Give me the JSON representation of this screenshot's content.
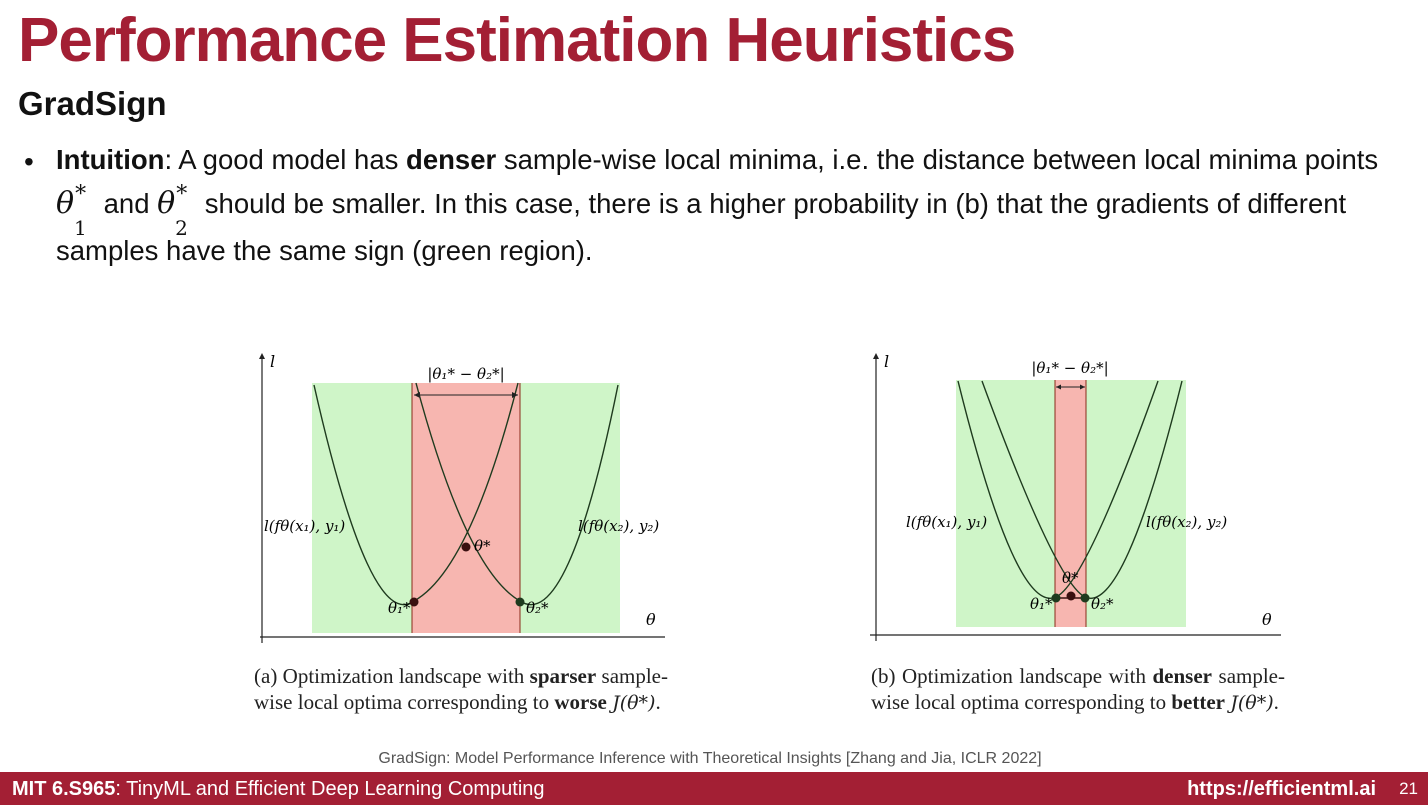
{
  "slide": {
    "title": "Performance Estimation Heuristics",
    "subtitle": "GradSign",
    "bullet": {
      "lead": "Intuition",
      "t1": ": A good model has ",
      "b1": "denser",
      "t2": " sample-wise local minima, i.e. the distance between local minima points ",
      "t3": " and ",
      "t4": " should be smaller. In this case, there is a higher probability in (b) that the gradients of different samples have the same sign (green region).",
      "theta": "θ",
      "star": "*",
      "sub1": "1",
      "sub2": "2"
    }
  },
  "figures": [
    {
      "panel": "a",
      "axis_y": "l",
      "axis_x": "θ",
      "distance_label": "|θ₁* − θ₂*|",
      "curve1_label": "l(fθ(x₁), y₁)",
      "curve2_label": "l(fθ(x₂), y₂)",
      "min1_label": "θ₁*",
      "min2_label": "θ₂*",
      "center_label": "θ*",
      "caption": {
        "c1": "(a) Optimization landscape with ",
        "c2": "sparser",
        "c3": " sample-wise local optima corresponding to ",
        "c4": "worse",
        "c5": "J(θ*)",
        "c6": "."
      }
    },
    {
      "panel": "b",
      "axis_y": "l",
      "axis_x": "θ",
      "distance_label": "|θ₁* − θ₂*|",
      "curve1_label": "l(fθ(x₁), y₁)",
      "curve2_label": "l(fθ(x₂), y₂)",
      "min1_label": "θ₁*",
      "min2_label": "θ₂*",
      "center_label": "θ*",
      "caption": {
        "c1": "(b) Optimization landscape with ",
        "c2": "denser",
        "c3": " sample-wise local optima corresponding to ",
        "c4": "better",
        "c5": "J(θ*)",
        "c6": "."
      }
    }
  ],
  "colors": {
    "brand": "#a31f34",
    "green_region": "#cff5c8",
    "red_region": "#f7b6b0"
  },
  "citation": "GradSign: Model Performance Inference with Theoretical Insights [Zhang and Jia, ICLR 2022]",
  "footer": {
    "course_code": "MIT 6.S965",
    "course_name": ": TinyML and Efficient Deep Learning Computing",
    "url": "https://efficientml.ai",
    "page": "21"
  }
}
